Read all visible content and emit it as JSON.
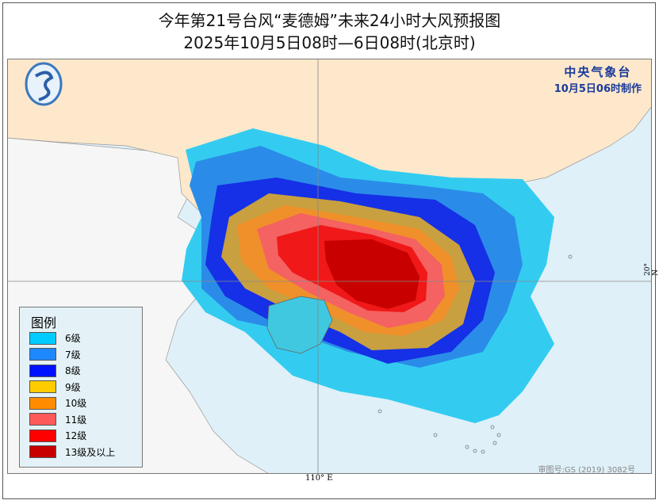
{
  "title": "今年第21号台风“麦德姆”未来24小时大风预报图",
  "subtitle": "2025年10月5日08时—6日08时(北京时)",
  "agency": {
    "name": "中央气象台",
    "issued": "10月5日06时制作"
  },
  "logo": "cma-logo",
  "legend": {
    "title": "图例",
    "items": [
      {
        "label": "6级",
        "color": "#00ccff"
      },
      {
        "label": "7级",
        "color": "#1e88ff"
      },
      {
        "label": "8级",
        "color": "#0011ff"
      },
      {
        "label": "9级",
        "color": "#ffcc00"
      },
      {
        "label": "10级",
        "color": "#ff8c00"
      },
      {
        "label": "11级",
        "color": "#ff5a5a"
      },
      {
        "label": "12级",
        "color": "#ff0000"
      },
      {
        "label": "13级及以上",
        "color": "#c80000"
      }
    ]
  },
  "axes": {
    "longitude_label": "110° E",
    "latitude_label": "20° N"
  },
  "credit": "审图号:GS (2019) 3082号",
  "colors": {
    "land": "#fde8cc",
    "sea": "#dff0f8",
    "foreign_land": "#f6f6f6"
  }
}
